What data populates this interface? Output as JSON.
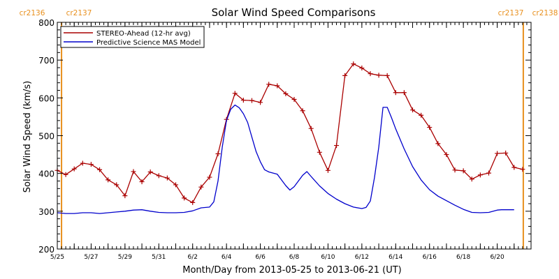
{
  "chart_data": {
    "type": "line",
    "title": "Solar Wind Speed Comparisons",
    "xlabel": "Month/Day from 2013-05-25 to 2013-06-21 (UT)",
    "ylabel": "Solar Wind Speed (km/s)",
    "xlim": [
      "2013-05-25",
      "2013-06-22"
    ],
    "ylim": [
      200,
      800
    ],
    "grid": false,
    "legend_position": "top-left",
    "x_tick_labels": [
      {
        "date": "2013-05-25",
        "label": "5/25"
      },
      {
        "date": "2013-05-27",
        "label": "5/27"
      },
      {
        "date": "2013-05-29",
        "label": "5/29"
      },
      {
        "date": "2013-05-31",
        "label": "5/31"
      },
      {
        "date": "2013-06-02",
        "label": "6/2"
      },
      {
        "date": "2013-06-04",
        "label": "6/4"
      },
      {
        "date": "2013-06-06",
        "label": "6/6"
      },
      {
        "date": "2013-06-08",
        "label": "6/8"
      },
      {
        "date": "2013-06-10",
        "label": "6/10"
      },
      {
        "date": "2013-06-12",
        "label": "6/12"
      },
      {
        "date": "2013-06-14",
        "label": "6/14"
      },
      {
        "date": "2013-06-16",
        "label": "6/16"
      },
      {
        "date": "2013-06-18",
        "label": "6/18"
      },
      {
        "date": "2013-06-20",
        "label": "6/20"
      }
    ],
    "y_ticks": [
      200,
      300,
      400,
      500,
      600,
      700,
      800
    ],
    "carrington_markers": [
      {
        "date": "2013-05-25 06:00",
        "label_left": "cr2136",
        "label_right": "cr2137",
        "color": "#e8901e"
      },
      {
        "date": "2013-06-21 13:00",
        "label_left": "cr2137",
        "label_right": "cr2138",
        "color": "#e8901e"
      }
    ],
    "series": [
      {
        "name": "STEREO-Ahead (12-hr avg)",
        "color": "#aa0000",
        "marker": "plus",
        "points": [
          [
            "2013-05-25 00:00",
            408
          ],
          [
            "2013-05-25 12:00",
            397
          ],
          [
            "2013-05-26 00:00",
            412
          ],
          [
            "2013-05-26 12:00",
            427
          ],
          [
            "2013-05-27 00:00",
            424
          ],
          [
            "2013-05-27 12:00",
            410
          ],
          [
            "2013-05-28 00:00",
            383
          ],
          [
            "2013-05-28 12:00",
            370
          ],
          [
            "2013-05-29 00:00",
            341
          ],
          [
            "2013-05-29 12:00",
            405
          ],
          [
            "2013-05-30 00:00",
            378
          ],
          [
            "2013-05-30 12:00",
            404
          ],
          [
            "2013-05-31 00:00",
            394
          ],
          [
            "2013-05-31 12:00",
            388
          ],
          [
            "2013-06-01 00:00",
            370
          ],
          [
            "2013-06-01 12:00",
            335
          ],
          [
            "2013-06-02 00:00",
            323
          ],
          [
            "2013-06-02 12:00",
            364
          ],
          [
            "2013-06-03 00:00",
            390
          ],
          [
            "2013-06-03 12:00",
            452
          ],
          [
            "2013-06-04 00:00",
            543
          ],
          [
            "2013-06-04 12:00",
            612
          ],
          [
            "2013-06-05 00:00",
            594
          ],
          [
            "2013-06-05 12:00",
            593
          ],
          [
            "2013-06-06 00:00",
            588
          ],
          [
            "2013-06-06 12:00",
            636
          ],
          [
            "2013-06-07 00:00",
            632
          ],
          [
            "2013-06-07 12:00",
            611
          ],
          [
            "2013-06-08 00:00",
            596
          ],
          [
            "2013-06-08 12:00",
            566
          ],
          [
            "2013-06-09 00:00",
            519
          ],
          [
            "2013-06-09 12:00",
            456
          ],
          [
            "2013-06-10 00:00",
            408
          ],
          [
            "2013-06-10 12:00",
            474
          ],
          [
            "2013-06-11 00:00",
            659
          ],
          [
            "2013-06-11 12:00",
            690
          ],
          [
            "2013-06-12 00:00",
            679
          ],
          [
            "2013-06-12 12:00",
            664
          ],
          [
            "2013-06-13 00:00",
            660
          ],
          [
            "2013-06-13 12:00",
            659
          ],
          [
            "2013-06-14 00:00",
            614
          ],
          [
            "2013-06-14 12:00",
            614
          ],
          [
            "2013-06-15 00:00",
            568
          ],
          [
            "2013-06-15 12:00",
            554
          ],
          [
            "2013-06-16 00:00",
            522
          ],
          [
            "2013-06-16 12:00",
            479
          ],
          [
            "2013-06-17 00:00",
            450
          ],
          [
            "2013-06-17 12:00",
            409
          ],
          [
            "2013-06-18 00:00",
            407
          ],
          [
            "2013-06-18 12:00",
            385
          ],
          [
            "2013-06-19 00:00",
            396
          ],
          [
            "2013-06-19 12:00",
            401
          ],
          [
            "2013-06-20 00:00",
            453
          ],
          [
            "2013-06-20 12:00",
            454
          ],
          [
            "2013-06-21 00:00",
            416
          ],
          [
            "2013-06-21 12:00",
            411
          ]
        ]
      },
      {
        "name": "Predictive Science MAS Model",
        "color": "#0000cc",
        "marker": "none",
        "points": [
          [
            "2013-05-25 00:00",
            296
          ],
          [
            "2013-05-25 12:00",
            294
          ],
          [
            "2013-05-26 00:00",
            294
          ],
          [
            "2013-05-26 12:00",
            296
          ],
          [
            "2013-05-27 00:00",
            296
          ],
          [
            "2013-05-27 12:00",
            294
          ],
          [
            "2013-05-28 00:00",
            296
          ],
          [
            "2013-05-28 12:00",
            298
          ],
          [
            "2013-05-29 00:00",
            300
          ],
          [
            "2013-05-29 12:00",
            303
          ],
          [
            "2013-05-30 00:00",
            304
          ],
          [
            "2013-05-30 12:00",
            300
          ],
          [
            "2013-05-31 00:00",
            297
          ],
          [
            "2013-05-31 12:00",
            296
          ],
          [
            "2013-06-01 00:00",
            296
          ],
          [
            "2013-06-01 12:00",
            297
          ],
          [
            "2013-06-02 00:00",
            301
          ],
          [
            "2013-06-02 12:00",
            309
          ],
          [
            "2013-06-03 00:00",
            311
          ],
          [
            "2013-06-03 06:00",
            325
          ],
          [
            "2013-06-03 12:00",
            380
          ],
          [
            "2013-06-03 18:00",
            470
          ],
          [
            "2013-06-04 00:00",
            540
          ],
          [
            "2013-06-04 06:00",
            570
          ],
          [
            "2013-06-04 12:00",
            581
          ],
          [
            "2013-06-04 18:00",
            574
          ],
          [
            "2013-06-05 00:00",
            558
          ],
          [
            "2013-06-05 06:00",
            535
          ],
          [
            "2013-06-05 12:00",
            496
          ],
          [
            "2013-06-05 18:00",
            458
          ],
          [
            "2013-06-06 00:00",
            431
          ],
          [
            "2013-06-06 06:00",
            410
          ],
          [
            "2013-06-06 12:00",
            404
          ],
          [
            "2013-06-07 00:00",
            398
          ],
          [
            "2013-06-07 12:00",
            368
          ],
          [
            "2013-06-07 18:00",
            356
          ],
          [
            "2013-06-08 00:00",
            365
          ],
          [
            "2013-06-08 12:00",
            395
          ],
          [
            "2013-06-08 18:00",
            405
          ],
          [
            "2013-06-09 00:00",
            392
          ],
          [
            "2013-06-09 12:00",
            367
          ],
          [
            "2013-06-10 00:00",
            347
          ],
          [
            "2013-06-10 12:00",
            332
          ],
          [
            "2013-06-11 00:00",
            320
          ],
          [
            "2013-06-11 12:00",
            311
          ],
          [
            "2013-06-12 00:00",
            307
          ],
          [
            "2013-06-12 06:00",
            310
          ],
          [
            "2013-06-12 12:00",
            327
          ],
          [
            "2013-06-12 18:00",
            390
          ],
          [
            "2013-06-13 00:00",
            470
          ],
          [
            "2013-06-13 06:00",
            575
          ],
          [
            "2013-06-13 12:00",
            575
          ],
          [
            "2013-06-13 18:00",
            548
          ],
          [
            "2013-06-14 00:00",
            518
          ],
          [
            "2013-06-14 12:00",
            465
          ],
          [
            "2013-06-15 00:00",
            418
          ],
          [
            "2013-06-15 12:00",
            383
          ],
          [
            "2013-06-16 00:00",
            357
          ],
          [
            "2013-06-16 12:00",
            340
          ],
          [
            "2013-06-17 00:00",
            328
          ],
          [
            "2013-06-17 12:00",
            316
          ],
          [
            "2013-06-18 00:00",
            305
          ],
          [
            "2013-06-18 12:00",
            297
          ],
          [
            "2013-06-19 00:00",
            296
          ],
          [
            "2013-06-19 12:00",
            297
          ],
          [
            "2013-06-20 00:00",
            303
          ],
          [
            "2013-06-20 06:00",
            304
          ],
          [
            "2013-06-21 00:00",
            304
          ]
        ]
      }
    ]
  }
}
